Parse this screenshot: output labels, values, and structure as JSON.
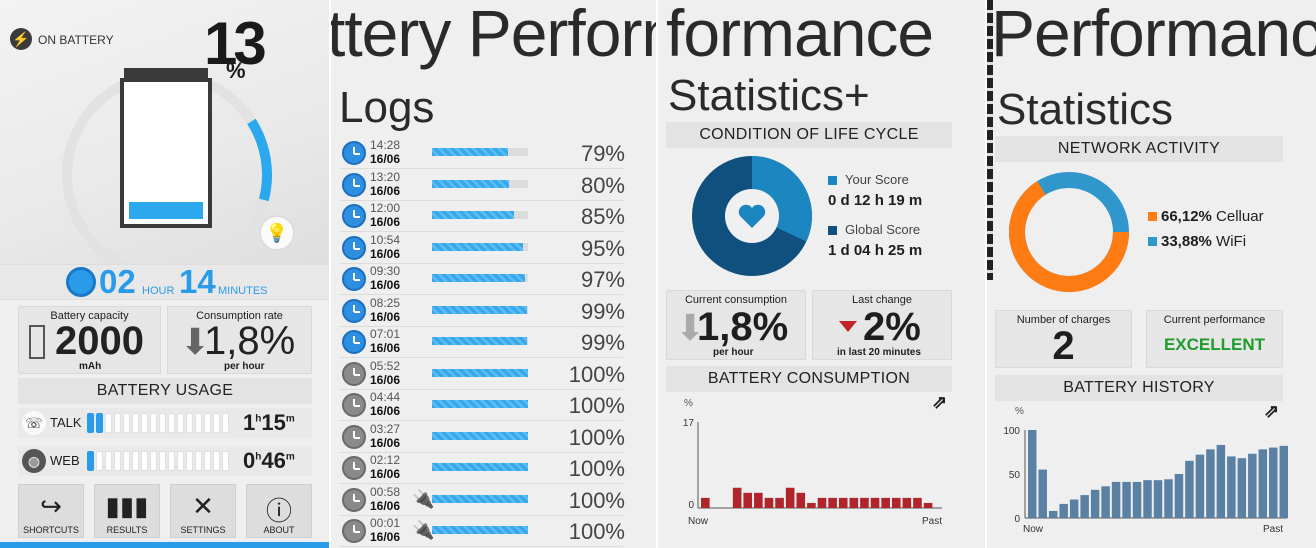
{
  "panel1": {
    "on_battery_label": "ON BATTERY",
    "percent_value": "13",
    "percent_sign": "%",
    "battery_level": 0.13,
    "time_hours": "02",
    "hour_label": "HOUR",
    "time_minutes": "14",
    "minutes_label": "MINUTES",
    "capacity_title": "Battery capacity",
    "capacity_value": "2000",
    "capacity_unit": "mAh",
    "rate_title": "Consumption rate",
    "rate_value": "1,8%",
    "rate_unit": "per hour",
    "usage_header": "BATTERY USAGE",
    "talk_label": "TALK",
    "talk_h": "1",
    "talk_m": "15",
    "web_label": "WEB",
    "web_h": "0",
    "web_m": "46",
    "h_suffix": "h",
    "m_suffix": "m",
    "tiles": [
      "SHORTCUTS",
      "RESULTS",
      "SETTINGS",
      "ABOUT"
    ],
    "accent": "#2a9be8"
  },
  "panel2": {
    "title": "ttery Perform",
    "subtitle": "Logs",
    "logs": [
      {
        "time": "14:28",
        "date": "16/06",
        "pct": "79%",
        "level": 0.79,
        "charging": false
      },
      {
        "time": "13:20",
        "date": "16/06",
        "pct": "80%",
        "level": 0.8,
        "charging": false
      },
      {
        "time": "12:00",
        "date": "16/06",
        "pct": "85%",
        "level": 0.85,
        "charging": false
      },
      {
        "time": "10:54",
        "date": "16/06",
        "pct": "95%",
        "level": 0.95,
        "charging": false
      },
      {
        "time": "09:30",
        "date": "16/06",
        "pct": "97%",
        "level": 0.97,
        "charging": false
      },
      {
        "time": "08:25",
        "date": "16/06",
        "pct": "99%",
        "level": 0.99,
        "charging": false
      },
      {
        "time": "07:01",
        "date": "16/06",
        "pct": "99%",
        "level": 0.99,
        "charging": false
      },
      {
        "time": "05:52",
        "date": "16/06",
        "pct": "100%",
        "level": 1.0,
        "charging": false
      },
      {
        "time": "04:44",
        "date": "16/06",
        "pct": "100%",
        "level": 1.0,
        "charging": false
      },
      {
        "time": "03:27",
        "date": "16/06",
        "pct": "100%",
        "level": 1.0,
        "charging": false
      },
      {
        "time": "02:12",
        "date": "16/06",
        "pct": "100%",
        "level": 1.0,
        "charging": false
      },
      {
        "time": "00:58",
        "date": "16/06",
        "pct": "100%",
        "level": 1.0,
        "charging": true
      },
      {
        "time": "00:01",
        "date": "16/06",
        "pct": "100%",
        "level": 1.0,
        "charging": true
      }
    ]
  },
  "panel3": {
    "title": "formance",
    "subtitle": "Statistics+",
    "lifecycle_header": "CONDITION OF LIFE CYCLE",
    "your_score_label": "Your Score",
    "your_score_value": "0 d 12 h 19 m",
    "global_score_label": "Global Score",
    "global_score_value": "1 d 04 h 25 m",
    "your_share": 0.32,
    "current_title": "Current consumption",
    "current_value": "1,8%",
    "current_unit": "per hour",
    "change_title": "Last change",
    "change_value": "2%",
    "change_unit": "in last 20 minutes",
    "consumption_header": "BATTERY CONSUMPTION",
    "y_unit": "%",
    "y_max": "17",
    "y_min": "0",
    "x_left": "Now",
    "x_right": "Past"
  },
  "panel4": {
    "title": "Performance",
    "subtitle": "Statistics",
    "network_header": "NETWORK ACTIVITY",
    "cellular_pct": "66,12%",
    "cellular_label": "Celluar",
    "wifi_pct": "33,88%",
    "wifi_label": "WiFi",
    "cellular_share": 0.6612,
    "charges_title": "Number of charges",
    "charges_value": "2",
    "performance_title": "Current performance",
    "performance_value": "EXCELLENT",
    "history_header": "BATTERY HISTORY",
    "y_unit": "%",
    "y_ticks": [
      "100",
      "50",
      "0"
    ],
    "x_left": "Now",
    "x_right": "Past"
  },
  "chart_data": [
    {
      "type": "bar",
      "title": "BATTERY CONSUMPTION",
      "ylabel": "%",
      "ylim": [
        0,
        17
      ],
      "xlabel_left": "Now",
      "xlabel_right": "Past",
      "values": [
        2,
        0,
        0,
        4,
        3,
        3,
        2,
        2,
        4,
        3,
        1,
        2,
        2,
        2,
        2,
        2,
        2,
        2,
        2,
        2,
        2,
        1,
        0
      ]
    },
    {
      "type": "bar",
      "title": "BATTERY HISTORY",
      "ylabel": "%",
      "ylim": [
        0,
        100
      ],
      "xlabel_left": "Now",
      "xlabel_right": "Past",
      "values": [
        100,
        55,
        8,
        16,
        21,
        26,
        32,
        36,
        41,
        41,
        41,
        43,
        43,
        44,
        50,
        65,
        72,
        78,
        83,
        70,
        68,
        73,
        78,
        80,
        82
      ]
    },
    {
      "type": "pie",
      "title": "NETWORK ACTIVITY",
      "labels": [
        "Celluar",
        "WiFi"
      ],
      "values": [
        66.12,
        33.88
      ]
    },
    {
      "type": "pie",
      "title": "CONDITION OF LIFE CYCLE",
      "labels": [
        "Your Score",
        "Global Score"
      ],
      "values": [
        32,
        68
      ]
    }
  ]
}
